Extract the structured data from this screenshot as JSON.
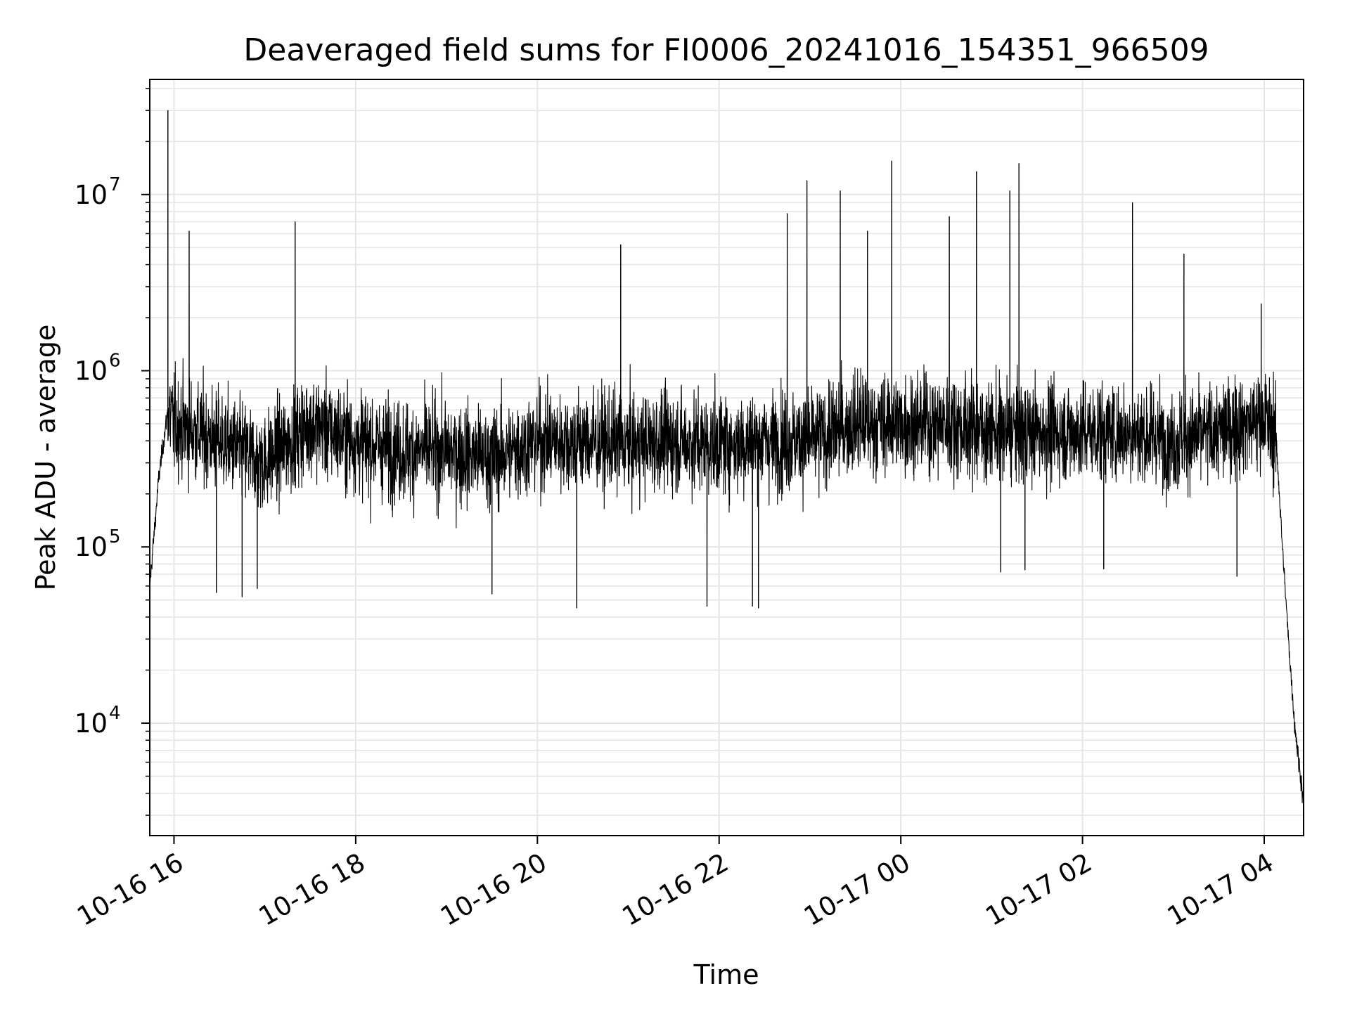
{
  "chart_data": {
    "type": "line",
    "title": "Deaveraged field sums for FI0006_20241016_154351_966509",
    "xlabel": "Time",
    "ylabel": "Peak ADU - average",
    "x_range": [
      "2024-10-16 15:44",
      "2024-10-17 04:26"
    ],
    "ylim": [
      2300,
      45000000
    ],
    "yscale": "log",
    "grid": true,
    "line_color": "#000000",
    "x_ticks": [
      {
        "t": "2024-10-16 16:00",
        "label": "10-16 16"
      },
      {
        "t": "2024-10-16 18:00",
        "label": "10-16 18"
      },
      {
        "t": "2024-10-16 20:00",
        "label": "10-16 20"
      },
      {
        "t": "2024-10-16 22:00",
        "label": "10-16 22"
      },
      {
        "t": "2024-10-17 00:00",
        "label": "10-17 00"
      },
      {
        "t": "2024-10-17 02:00",
        "label": "10-17 02"
      },
      {
        "t": "2024-10-17 04:00",
        "label": "10-17 04"
      }
    ],
    "y_ticks": [
      {
        "value": 10000,
        "base": "10",
        "exp": "4"
      },
      {
        "value": 100000,
        "base": "10",
        "exp": "5"
      },
      {
        "value": 1000000,
        "base": "10",
        "exp": "6"
      },
      {
        "value": 10000000,
        "base": "10",
        "exp": "7"
      }
    ],
    "series": [
      {
        "points": [
          {
            "t": "2024-10-16 15:44",
            "y": 60000
          },
          {
            "t": "2024-10-16 15:50",
            "y": 250000
          },
          {
            "t": "2024-10-16 15:56",
            "y": 600000
          },
          {
            "t": "2024-10-16 16:00",
            "y": 500000
          },
          {
            "t": "2024-10-16 16:30",
            "y": 400000
          },
          {
            "t": "2024-10-16 17:00",
            "y": 300000
          },
          {
            "t": "2024-10-16 17:30",
            "y": 500000
          },
          {
            "t": "2024-10-16 18:00",
            "y": 400000
          },
          {
            "t": "2024-10-16 18:30",
            "y": 350000
          },
          {
            "t": "2024-10-16 19:00",
            "y": 350000
          },
          {
            "t": "2024-10-16 19:30",
            "y": 320000
          },
          {
            "t": "2024-10-16 20:00",
            "y": 400000
          },
          {
            "t": "2024-10-16 20:30",
            "y": 400000
          },
          {
            "t": "2024-10-16 21:00",
            "y": 380000
          },
          {
            "t": "2024-10-16 21:30",
            "y": 400000
          },
          {
            "t": "2024-10-16 22:00",
            "y": 380000
          },
          {
            "t": "2024-10-16 22:30",
            "y": 400000
          },
          {
            "t": "2024-10-16 23:00",
            "y": 400000
          },
          {
            "t": "2024-10-16 23:30",
            "y": 500000
          },
          {
            "t": "2024-10-17 00:00",
            "y": 500000
          },
          {
            "t": "2024-10-17 00:30",
            "y": 500000
          },
          {
            "t": "2024-10-17 01:00",
            "y": 450000
          },
          {
            "t": "2024-10-17 01:30",
            "y": 450000
          },
          {
            "t": "2024-10-17 02:00",
            "y": 450000
          },
          {
            "t": "2024-10-17 02:30",
            "y": 450000
          },
          {
            "t": "2024-10-17 03:00",
            "y": 400000
          },
          {
            "t": "2024-10-17 03:30",
            "y": 450000
          },
          {
            "t": "2024-10-17 04:00",
            "y": 550000
          },
          {
            "t": "2024-10-17 04:08",
            "y": 400000
          },
          {
            "t": "2024-10-17 04:12",
            "y": 100000
          },
          {
            "t": "2024-10-17 04:16",
            "y": 30000
          },
          {
            "t": "2024-10-17 04:20",
            "y": 10000
          },
          {
            "t": "2024-10-17 04:26",
            "y": 3500
          }
        ],
        "spikes": [
          {
            "t": "2024-10-16 15:56",
            "y": 30000000
          },
          {
            "t": "2024-10-16 16:10",
            "y": 6200000
          },
          {
            "t": "2024-10-16 17:20",
            "y": 7000000
          },
          {
            "t": "2024-10-16 20:55",
            "y": 5200000
          },
          {
            "t": "2024-10-16 22:45",
            "y": 7800000
          },
          {
            "t": "2024-10-16 22:58",
            "y": 12000000
          },
          {
            "t": "2024-10-16 23:20",
            "y": 10500000
          },
          {
            "t": "2024-10-16 23:38",
            "y": 6200000
          },
          {
            "t": "2024-10-16 23:54",
            "y": 15500000
          },
          {
            "t": "2024-10-17 00:32",
            "y": 7500000
          },
          {
            "t": "2024-10-17 00:50",
            "y": 13500000
          },
          {
            "t": "2024-10-17 01:12",
            "y": 10500000
          },
          {
            "t": "2024-10-17 01:18",
            "y": 15000000
          },
          {
            "t": "2024-10-17 02:33",
            "y": 9000000
          },
          {
            "t": "2024-10-17 03:07",
            "y": 4600000
          },
          {
            "t": "2024-10-17 03:58",
            "y": 2400000
          }
        ],
        "dips": [
          {
            "t": "2024-10-16 16:28",
            "y": 55000
          },
          {
            "t": "2024-10-16 16:45",
            "y": 52000
          },
          {
            "t": "2024-10-16 16:55",
            "y": 58000
          },
          {
            "t": "2024-10-16 19:30",
            "y": 54000
          },
          {
            "t": "2024-10-16 20:26",
            "y": 45000
          },
          {
            "t": "2024-10-16 21:52",
            "y": 46000
          },
          {
            "t": "2024-10-16 22:22",
            "y": 46000
          },
          {
            "t": "2024-10-16 22:26",
            "y": 45000
          },
          {
            "t": "2024-10-17 01:06",
            "y": 72000
          },
          {
            "t": "2024-10-17 01:22",
            "y": 74000
          },
          {
            "t": "2024-10-17 02:14",
            "y": 75000
          },
          {
            "t": "2024-10-17 03:42",
            "y": 68000
          }
        ]
      }
    ]
  }
}
